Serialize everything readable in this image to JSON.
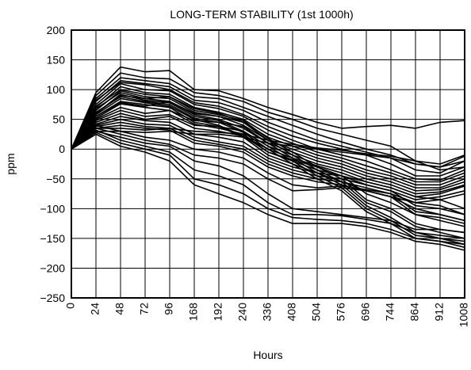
{
  "chart_data": {
    "type": "line",
    "title": "LONG-TERM STABILITY (1st 1000h)",
    "xlabel": "Hours",
    "ylabel": "ppm",
    "ylim": [
      -250,
      200
    ],
    "yticks": [
      200,
      150,
      100,
      50,
      0,
      -50,
      -100,
      -150,
      -200,
      -250
    ],
    "yticklabels": [
      "200",
      "150",
      "100",
      "50",
      "0",
      "−50",
      "−100",
      "−150",
      "−200",
      "−250"
    ],
    "categories": [
      "0",
      "24",
      "48",
      "72",
      "96",
      "168",
      "192",
      "240",
      "336",
      "408",
      "504",
      "576",
      "696",
      "744",
      "864",
      "912",
      "1008"
    ],
    "x": [
      0,
      24,
      48,
      72,
      96,
      168,
      192,
      240,
      336,
      408,
      504,
      576,
      696,
      744,
      864,
      912,
      1008
    ],
    "grid": true,
    "line_color": "#000000",
    "series": [
      {
        "values": [
          0,
          95,
          138,
          130,
          132,
          100,
          98,
          85,
          70,
          58,
          45,
          35,
          38,
          40,
          35,
          45,
          48
        ]
      },
      {
        "values": [
          0,
          90,
          128,
          120,
          118,
          95,
          90,
          80,
          62,
          50,
          35,
          25,
          15,
          5,
          -20,
          -35,
          -30
        ]
      },
      {
        "values": [
          0,
          85,
          120,
          115,
          110,
          88,
          85,
          70,
          55,
          40,
          25,
          12,
          0,
          -10,
          -25,
          -30,
          -12
        ]
      },
      {
        "values": [
          0,
          80,
          115,
          110,
          105,
          82,
          78,
          65,
          45,
          30,
          15,
          5,
          -5,
          -15,
          -35,
          -40,
          -20
        ]
      },
      {
        "values": [
          0,
          82,
          112,
          108,
          100,
          78,
          72,
          58,
          38,
          22,
          10,
          0,
          -10,
          -25,
          -45,
          -45,
          -30
        ]
      },
      {
        "values": [
          0,
          75,
          110,
          100,
          98,
          75,
          68,
          55,
          32,
          15,
          0,
          -10,
          -20,
          -35,
          -50,
          -52,
          -35
        ]
      },
      {
        "values": [
          0,
          70,
          105,
          95,
          92,
          70,
          62,
          50,
          25,
          10,
          -5,
          -15,
          -28,
          -40,
          -55,
          -55,
          -40
        ]
      },
      {
        "values": [
          0,
          72,
          100,
          92,
          88,
          68,
          60,
          45,
          20,
          5,
          -10,
          -20,
          -35,
          -45,
          -60,
          -60,
          -45
        ]
      },
      {
        "values": [
          0,
          65,
          98,
          88,
          85,
          62,
          55,
          40,
          15,
          0,
          -15,
          -25,
          -40,
          -50,
          -65,
          -65,
          -50
        ]
      },
      {
        "values": [
          0,
          68,
          95,
          85,
          80,
          58,
          50,
          35,
          10,
          -5,
          -20,
          -30,
          -45,
          -55,
          -70,
          -68,
          -55
        ]
      },
      {
        "values": [
          0,
          60,
          92,
          82,
          78,
          55,
          48,
          30,
          5,
          -10,
          -25,
          -35,
          -50,
          -60,
          -75,
          -72,
          -60
        ]
      },
      {
        "values": [
          0,
          62,
          88,
          80,
          75,
          52,
          45,
          28,
          0,
          -15,
          -28,
          -40,
          -55,
          -65,
          -80,
          -75,
          -62
        ]
      },
      {
        "values": [
          0,
          58,
          85,
          78,
          72,
          50,
          40,
          22,
          -5,
          -20,
          -35,
          -45,
          -60,
          -70,
          -85,
          -80,
          -70
        ]
      },
      {
        "values": [
          0,
          55,
          80,
          75,
          70,
          45,
          38,
          20,
          -10,
          -25,
          -40,
          -55,
          -70,
          -80,
          -90,
          -85,
          -75
        ]
      },
      {
        "values": [
          0,
          52,
          76,
          70,
          65,
          42,
          35,
          25,
          -5,
          -18,
          -30,
          -45,
          -75,
          -90,
          -110,
          -120,
          -130
        ]
      },
      {
        "values": [
          0,
          55,
          78,
          72,
          80,
          60,
          55,
          45,
          15,
          -10,
          -35,
          -55,
          -90,
          -105,
          -130,
          -140,
          -150
        ]
      },
      {
        "values": [
          0,
          60,
          90,
          85,
          88,
          65,
          58,
          48,
          18,
          -5,
          -30,
          -50,
          -85,
          -100,
          -125,
          -135,
          -140
        ]
      },
      {
        "values": [
          0,
          50,
          70,
          60,
          65,
          48,
          45,
          38,
          10,
          -15,
          -40,
          -60,
          -95,
          -115,
          -140,
          -150,
          -160
        ]
      },
      {
        "values": [
          0,
          48,
          65,
          55,
          58,
          40,
          38,
          30,
          5,
          -20,
          -45,
          -65,
          -100,
          -120,
          -145,
          -150,
          -155
        ]
      },
      {
        "values": [
          0,
          45,
          60,
          50,
          55,
          35,
          30,
          22,
          0,
          -25,
          -50,
          -70,
          -105,
          -125,
          -150,
          -155,
          -165
        ]
      },
      {
        "values": [
          0,
          42,
          55,
          48,
          45,
          25,
          20,
          12,
          -15,
          -30,
          -40,
          -45,
          -55,
          -65,
          -80,
          -85,
          -100
        ]
      },
      {
        "values": [
          0,
          40,
          50,
          42,
          40,
          20,
          12,
          5,
          -20,
          -35,
          -45,
          -50,
          -60,
          -70,
          -95,
          -100,
          -110
        ]
      },
      {
        "values": [
          0,
          38,
          45,
          38,
          35,
          15,
          8,
          0,
          -25,
          -40,
          -50,
          -55,
          -65,
          -75,
          -105,
          -110,
          -120
        ]
      },
      {
        "values": [
          0,
          35,
          40,
          35,
          32,
          10,
          5,
          -5,
          -30,
          -45,
          -55,
          -60,
          -70,
          -80,
          -110,
          -115,
          -125
        ]
      },
      {
        "values": [
          0,
          40,
          30,
          20,
          15,
          0,
          -5,
          -15,
          -40,
          -60,
          -65,
          -62,
          -68,
          -75,
          -90,
          -95,
          -110
        ]
      },
      {
        "values": [
          0,
          35,
          25,
          15,
          8,
          -10,
          -15,
          -25,
          -50,
          -70,
          -68,
          -65,
          -70,
          -80,
          -100,
          -110,
          -120
        ]
      },
      {
        "values": [
          0,
          30,
          20,
          10,
          5,
          -20,
          -28,
          -45,
          -75,
          -100,
          -105,
          -110,
          -115,
          -120,
          -135,
          -135,
          -140
        ]
      },
      {
        "values": [
          0,
          32,
          15,
          5,
          -5,
          -35,
          -45,
          -60,
          -90,
          -110,
          -110,
          -112,
          -118,
          -125,
          -140,
          -145,
          -150
        ]
      },
      {
        "values": [
          0,
          28,
          10,
          0,
          -10,
          -50,
          -60,
          -75,
          -100,
          -115,
          -118,
          -120,
          -125,
          -135,
          -150,
          -155,
          -160
        ]
      },
      {
        "values": [
          0,
          25,
          5,
          -5,
          -20,
          -60,
          -75,
          -90,
          -110,
          -125,
          -125,
          -125,
          -130,
          -140,
          -155,
          -160,
          -170
        ]
      },
      {
        "values": [
          0,
          30,
          30,
          28,
          30,
          25,
          25,
          20,
          10,
          5,
          0,
          -5,
          -10,
          -15,
          -25,
          -30,
          -20
        ]
      },
      {
        "values": [
          0,
          35,
          35,
          32,
          35,
          30,
          28,
          25,
          15,
          8,
          2,
          -2,
          -8,
          -12,
          -20,
          -25,
          -10
        ]
      }
    ]
  }
}
